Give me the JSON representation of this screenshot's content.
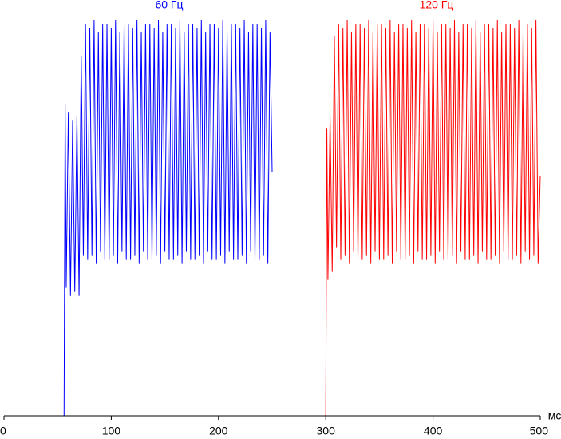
{
  "chart_data": {
    "type": "line",
    "x_label": "мс",
    "xlim": [
      0,
      500
    ],
    "xticks": [
      0,
      100,
      200,
      300,
      400,
      500
    ],
    "ylim": [
      0,
      100
    ],
    "grid": false,
    "series": [
      {
        "name": "60 Гц",
        "color": "#0000ff",
        "x": [
          0,
          56,
          57,
          58,
          60,
          62,
          64,
          66,
          68,
          70,
          72,
          74,
          76,
          78,
          80,
          82,
          84,
          86,
          88,
          90,
          92,
          94,
          96,
          98,
          100,
          102,
          104,
          106,
          108,
          110,
          112,
          114,
          116,
          118,
          120,
          122,
          124,
          126,
          128,
          130,
          132,
          134,
          136,
          138,
          140,
          142,
          144,
          146,
          148,
          150,
          152,
          154,
          156,
          158,
          160,
          162,
          164,
          166,
          168,
          170,
          172,
          174,
          176,
          178,
          180,
          182,
          184,
          186,
          188,
          190,
          192,
          194,
          196,
          198,
          200,
          202,
          204,
          206,
          208,
          210,
          212,
          214,
          216,
          218,
          220,
          222,
          224,
          226,
          228,
          230,
          232,
          234,
          236,
          238,
          240,
          242,
          244,
          246,
          248,
          250
        ],
        "values": [
          0,
          0,
          78,
          32,
          76,
          30,
          74,
          31,
          75,
          30,
          90,
          40,
          98,
          39,
          97,
          40,
          99,
          38,
          96,
          41,
          98,
          39,
          98,
          39,
          97,
          40,
          99,
          38,
          96,
          41,
          98,
          39,
          98,
          39,
          97,
          40,
          99,
          38,
          96,
          41,
          98,
          39,
          98,
          39,
          97,
          40,
          99,
          38,
          96,
          41,
          98,
          39,
          98,
          39,
          97,
          40,
          99,
          38,
          96,
          41,
          98,
          39,
          98,
          39,
          97,
          40,
          99,
          38,
          96,
          41,
          98,
          39,
          98,
          39,
          97,
          40,
          99,
          38,
          96,
          41,
          98,
          39,
          98,
          39,
          97,
          40,
          99,
          38,
          96,
          41,
          98,
          39,
          98,
          39,
          97,
          40,
          99,
          38,
          96,
          61
        ]
      },
      {
        "name": "120 Гц",
        "color": "#ff0000",
        "x": [
          250,
          300,
          301,
          302,
          304,
          306,
          308,
          310,
          312,
          314,
          316,
          318,
          320,
          322,
          324,
          326,
          328,
          330,
          332,
          334,
          336,
          338,
          340,
          342,
          344,
          346,
          348,
          350,
          352,
          354,
          356,
          358,
          360,
          362,
          364,
          366,
          368,
          370,
          372,
          374,
          376,
          378,
          380,
          382,
          384,
          386,
          388,
          390,
          392,
          394,
          396,
          398,
          400,
          402,
          404,
          406,
          408,
          410,
          412,
          414,
          416,
          418,
          420,
          422,
          424,
          426,
          428,
          430,
          432,
          434,
          436,
          438,
          440,
          442,
          444,
          446,
          448,
          450,
          452,
          454,
          456,
          458,
          460,
          462,
          464,
          466,
          468,
          470,
          472,
          474,
          476,
          478,
          480,
          482,
          484,
          486,
          488,
          490,
          492,
          494,
          496,
          498,
          500
        ],
        "values": [
          0,
          0,
          72,
          34,
          75,
          36,
          95,
          42,
          98,
          39,
          97,
          40,
          99,
          38,
          96,
          41,
          98,
          39,
          98,
          39,
          97,
          40,
          99,
          38,
          96,
          41,
          98,
          39,
          98,
          39,
          97,
          40,
          99,
          38,
          96,
          41,
          98,
          39,
          98,
          39,
          97,
          40,
          99,
          38,
          96,
          41,
          98,
          39,
          98,
          39,
          97,
          40,
          99,
          38,
          96,
          41,
          98,
          39,
          98,
          39,
          97,
          40,
          99,
          38,
          96,
          41,
          98,
          39,
          98,
          39,
          97,
          40,
          99,
          38,
          96,
          41,
          98,
          39,
          98,
          39,
          97,
          40,
          99,
          38,
          96,
          41,
          98,
          39,
          98,
          39,
          97,
          40,
          99,
          38,
          96,
          41,
          98,
          39,
          97,
          40,
          99,
          38,
          60
        ]
      }
    ]
  }
}
